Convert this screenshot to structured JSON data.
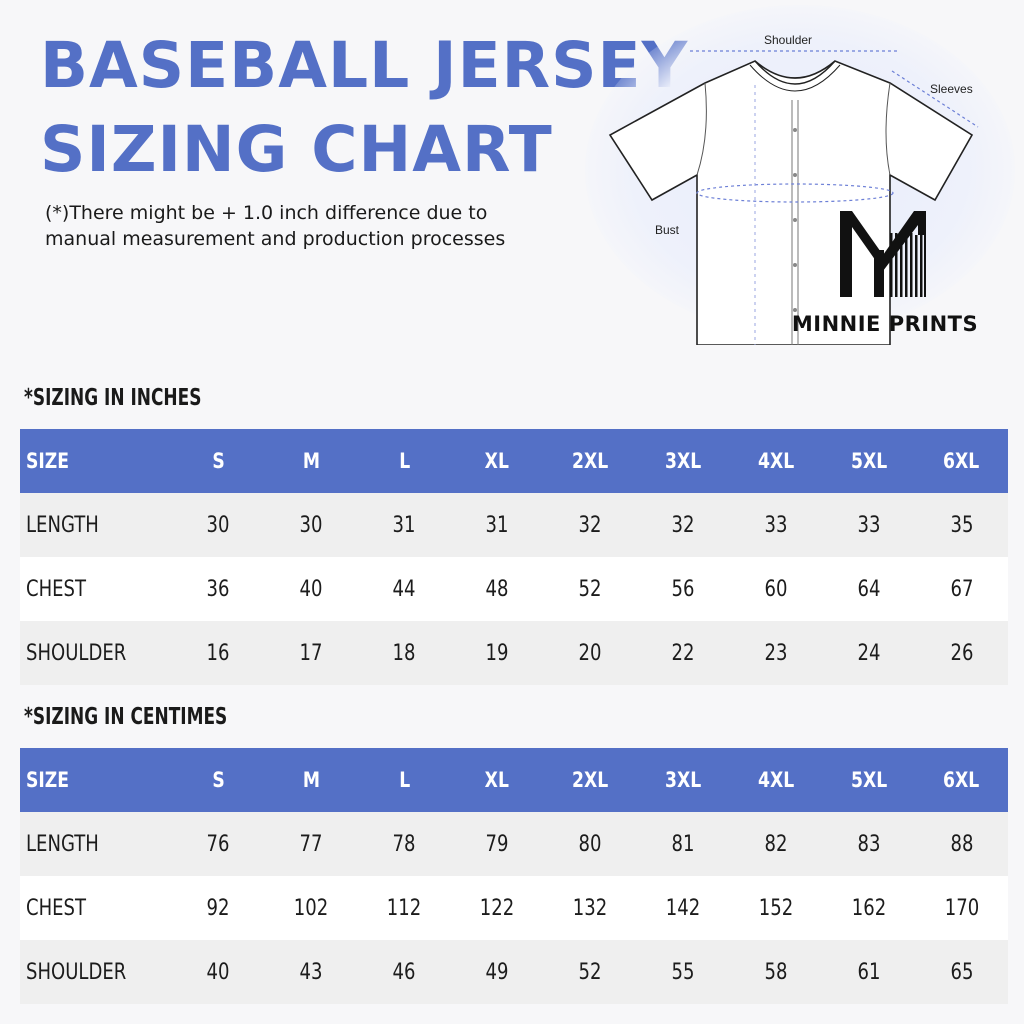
{
  "header": {
    "title_line1": "BASEBALL JERSEY",
    "title_line2": "SIZING CHART",
    "note_line1": "(*)There might be + 1.0 inch difference due to",
    "note_line2": "manual measurement and production processes"
  },
  "diagram": {
    "shoulder_label": "Shoulder",
    "sleeves_label": "Sleeves",
    "bust_label": "Bust"
  },
  "brand": {
    "name": "MINNIE PRINTS",
    "logo_icon": "mp-monogram-logo"
  },
  "colors": {
    "accent": "#5470c6",
    "row_alt": "#efefef"
  },
  "tables": [
    {
      "title": "*SIZING IN INCHES",
      "headers": [
        "SIZE",
        "S",
        "M",
        "L",
        "XL",
        "2XL",
        "3XL",
        "4XL",
        "5XL",
        "6XL"
      ],
      "rows": [
        {
          "label": "LENGTH",
          "values": [
            "30",
            "30",
            "31",
            "31",
            "32",
            "32",
            "33",
            "33",
            "35"
          ]
        },
        {
          "label": "CHEST",
          "values": [
            "36",
            "40",
            "44",
            "48",
            "52",
            "56",
            "60",
            "64",
            "67"
          ]
        },
        {
          "label": "SHOULDER",
          "values": [
            "16",
            "17",
            "18",
            "19",
            "20",
            "22",
            "23",
            "24",
            "26"
          ]
        }
      ]
    },
    {
      "title": "*SIZING IN CENTIMES",
      "headers": [
        "SIZE",
        "S",
        "M",
        "L",
        "XL",
        "2XL",
        "3XL",
        "4XL",
        "5XL",
        "6XL"
      ],
      "rows": [
        {
          "label": "LENGTH",
          "values": [
            "76",
            "77",
            "78",
            "79",
            "80",
            "81",
            "82",
            "83",
            "88"
          ]
        },
        {
          "label": "CHEST",
          "values": [
            "92",
            "102",
            "112",
            "122",
            "132",
            "142",
            "152",
            "162",
            "170"
          ]
        },
        {
          "label": "SHOULDER",
          "values": [
            "40",
            "43",
            "46",
            "49",
            "52",
            "55",
            "58",
            "61",
            "65"
          ]
        }
      ]
    }
  ]
}
